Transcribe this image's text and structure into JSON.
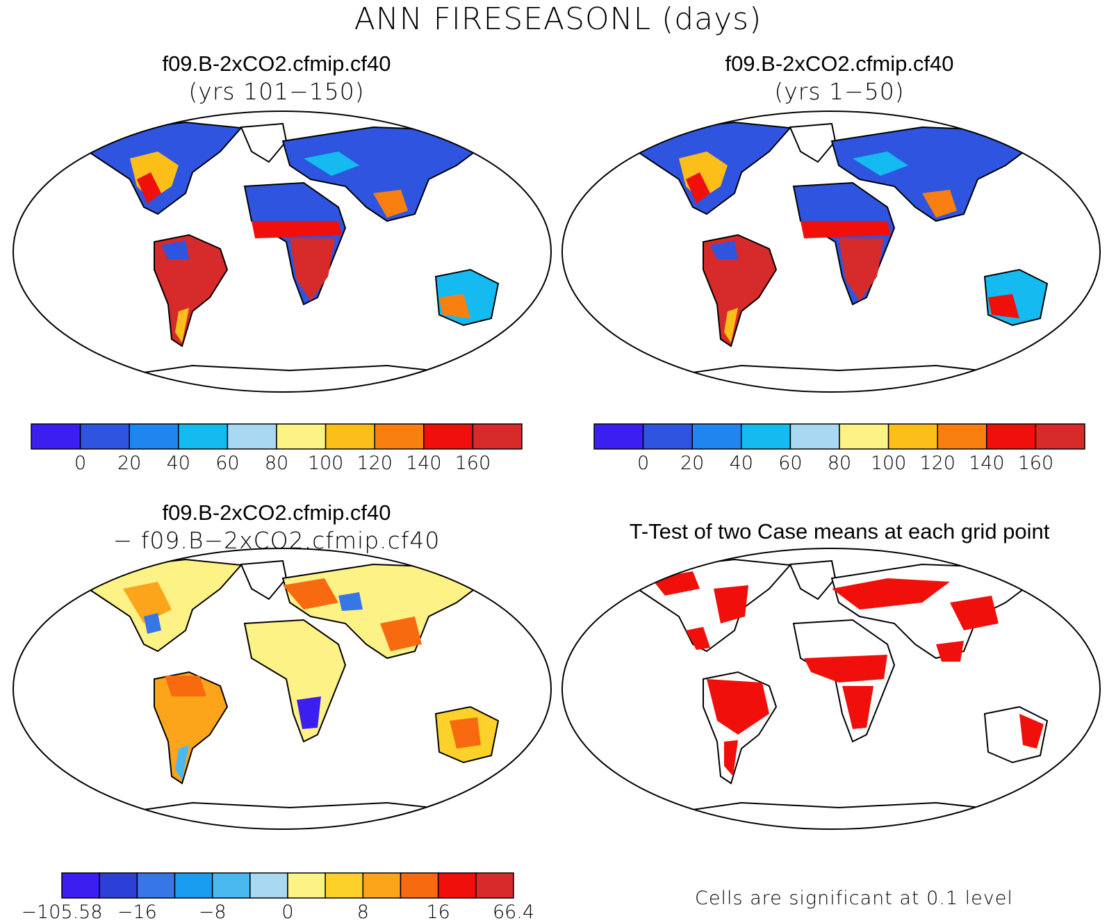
{
  "title": "ANN FIRESEASONL (days)",
  "panels": [
    {
      "title": "f09.B-2xCO2.cfmip.cf40",
      "subtitle": "(yrs 101−150)"
    },
    {
      "title": "f09.B-2xCO2.cfmip.cf40",
      "subtitle": "(yrs 1−50)"
    },
    {
      "title": "f09.B-2xCO2.cfmip.cf40",
      "subtitle": "− f09.B−2xCO2.cfmip.cf40"
    },
    {
      "title": "T-Test of two Case means at each grid point",
      "subtitle": ""
    }
  ],
  "colorbar_abs": {
    "ticks": [
      "0",
      "20",
      "40",
      "60",
      "80",
      "100",
      "120",
      "140",
      "160"
    ],
    "colors": [
      "#3b1ff0",
      "#2f55e0",
      "#1f86f0",
      "#15baf0",
      "#a9d8f2",
      "#fdf285",
      "#fcbf1a",
      "#f98010",
      "#f00f0a",
      "#d72a2a"
    ]
  },
  "colorbar_diff": {
    "ticks": [
      "−105.58",
      "−16",
      "−8",
      "0",
      "8",
      "16",
      "66.4"
    ],
    "colors": [
      "#3b1ff0",
      "#2c40d8",
      "#3776e6",
      "#1a9cf0",
      "#4ab9f0",
      "#a9d8f2",
      "#fdf285",
      "#fcd22a",
      "#fca41a",
      "#f86a10",
      "#f00f0a",
      "#d72a2a"
    ]
  },
  "significance_note": "Cells are significant at 0.1 level"
}
